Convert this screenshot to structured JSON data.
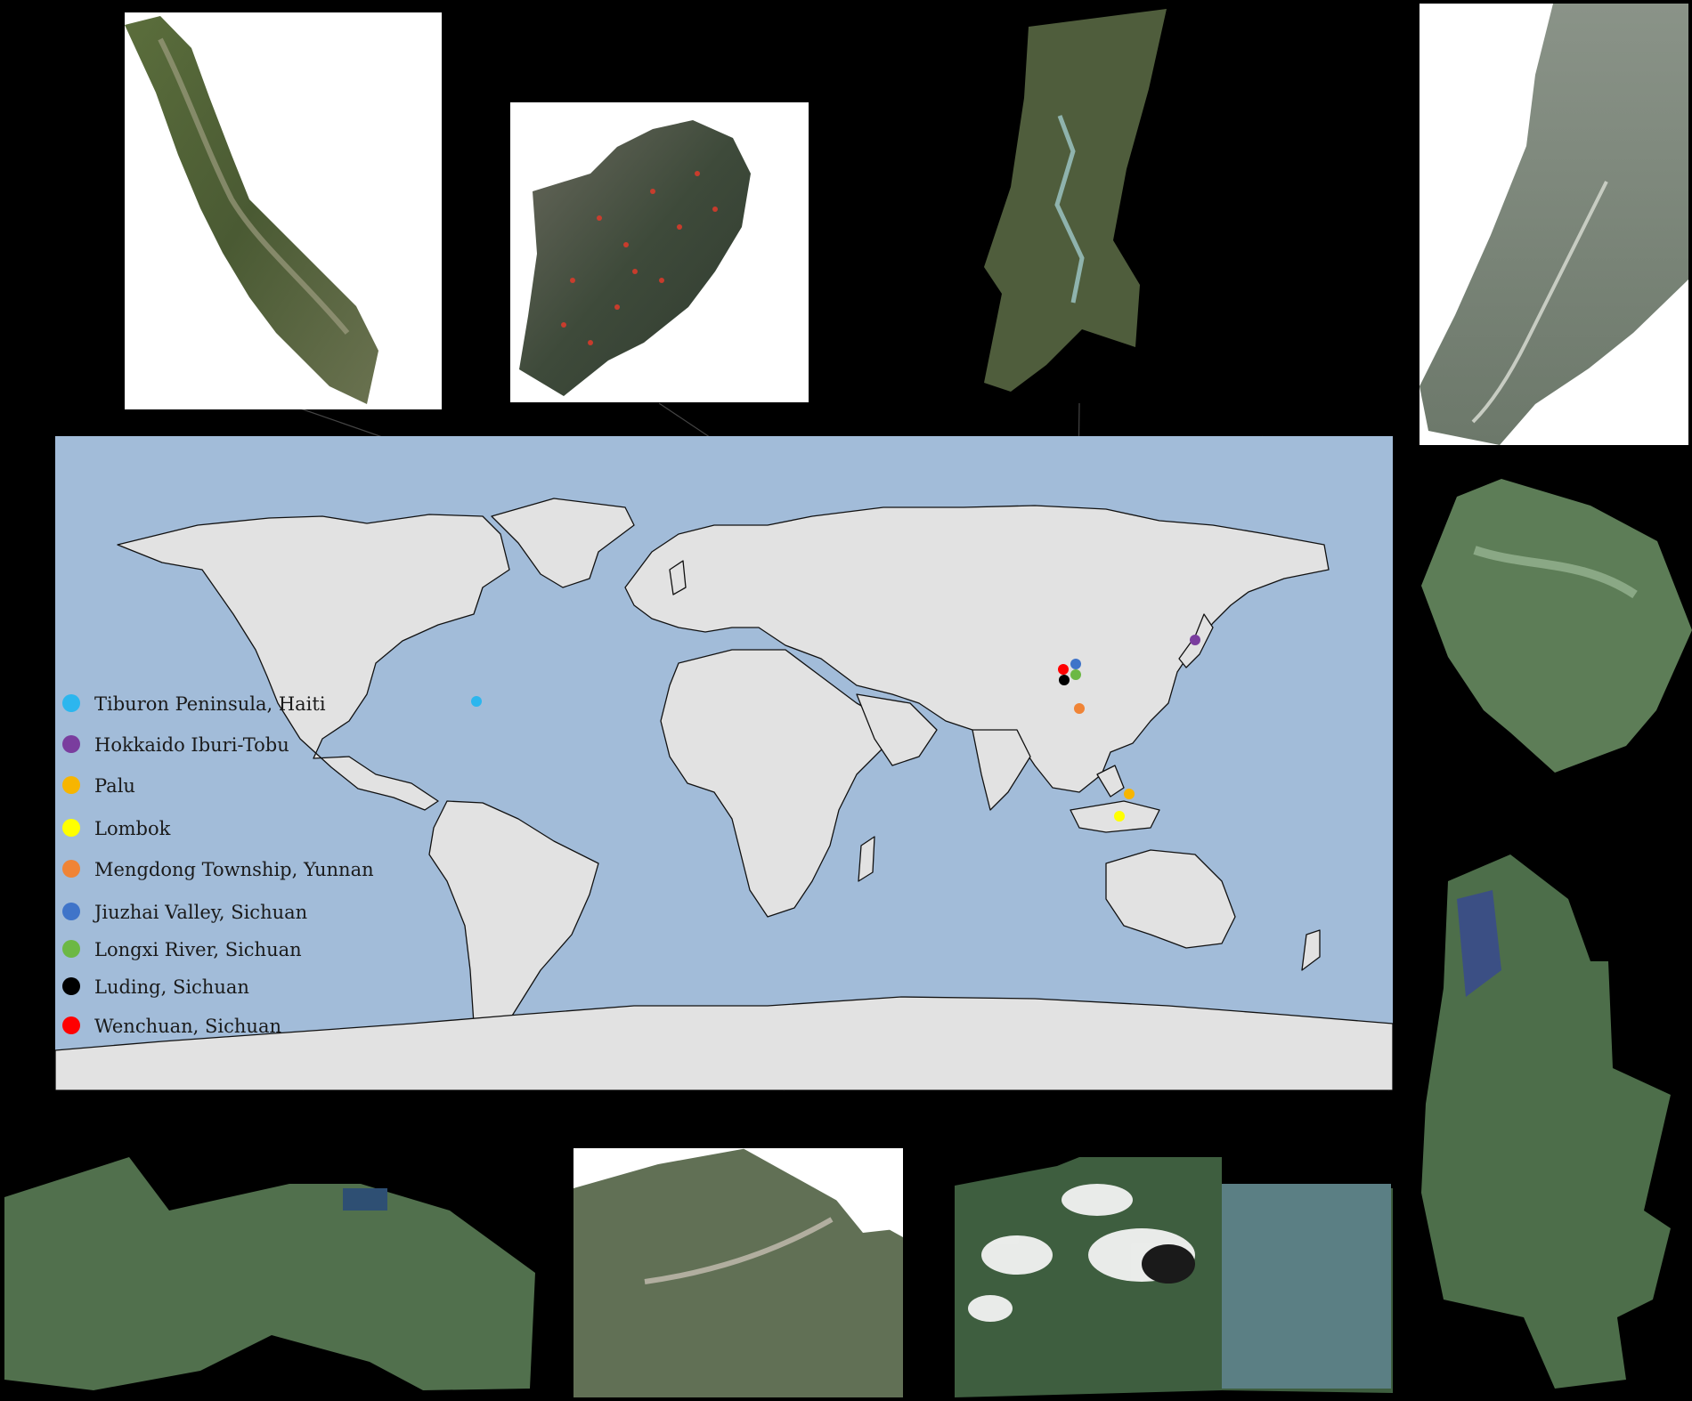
{
  "legend": {
    "items": [
      {
        "label": "Tiburon Peninsula, Haiti",
        "color": "#2cb6ee"
      },
      {
        "label": "Hokkaido Iburi-Tobu",
        "color": "#7a3d9e"
      },
      {
        "label": "Palu",
        "color": "#f7b500"
      },
      {
        "label": "Lombok",
        "color": "#ffff00"
      },
      {
        "label": "Mengdong Township, Yunnan",
        "color": "#f08436"
      },
      {
        "label": "Jiuzhai Valley, Sichuan",
        "color": "#3f74c9"
      },
      {
        "label": "Longxi River, Sichuan",
        "color": "#6cb844"
      },
      {
        "label": "Luding, Sichuan",
        "color": "#000000"
      },
      {
        "label": "Wenchuan, Sichuan",
        "color": "#ff0000"
      }
    ]
  },
  "colors": {
    "ocean": "#a2bcd9",
    "land": "#e2e2e2",
    "background": "#000000"
  },
  "imagery_tiles": [
    {
      "name": "Tiburon Peninsula, Haiti",
      "icon": "satellite-tile"
    },
    {
      "name": "Hokkaido Iburi-Tobu",
      "icon": "satellite-tile"
    },
    {
      "name": "Palu",
      "icon": "satellite-tile"
    },
    {
      "name": "Lombok",
      "icon": "satellite-tile"
    },
    {
      "name": "Mengdong Township, Yunnan",
      "icon": "satellite-tile"
    },
    {
      "name": "Jiuzhai Valley, Sichuan",
      "icon": "satellite-tile"
    },
    {
      "name": "Longxi River, Sichuan",
      "icon": "satellite-tile"
    },
    {
      "name": "Luding, Sichuan",
      "icon": "satellite-tile"
    },
    {
      "name": "Wenchuan, Sichuan",
      "icon": "satellite-tile"
    }
  ]
}
